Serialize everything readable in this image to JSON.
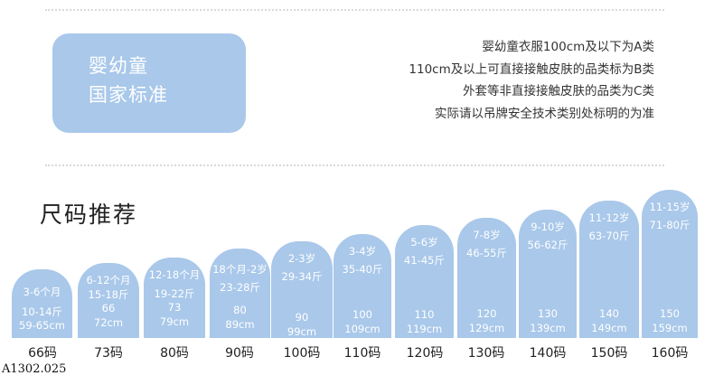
{
  "badge": {
    "line1": "婴幼童",
    "line2": "国家标准"
  },
  "rules": [
    "婴幼童衣服100cm及以下为A类",
    "110cm及以上可直接接触皮肤的品类标为B类",
    "外套等非直接接触皮肤的品类为C类",
    "实际请以吊牌安全技术类别处标明的为准"
  ],
  "section_title": "尺码推荐",
  "sizes": [
    {
      "age": "3-6个月",
      "length": "10-14斤",
      "weight": "59-65cm",
      "num": "",
      "cm": "",
      "label": "66码"
    },
    {
      "age": "6-12个月",
      "length": "15-18斤",
      "weight": "",
      "num": "66",
      "cm": "72cm",
      "label": "73码"
    },
    {
      "age": "12-18个月",
      "length": "19-22斤",
      "weight": "",
      "num": "73",
      "cm": "79cm",
      "label": "80码"
    },
    {
      "age": "18个月-2岁",
      "length": "23-28斤",
      "weight": "",
      "num": "80",
      "cm": "89cm",
      "label": "90码"
    },
    {
      "age": "2-3岁",
      "length": "29-34斤",
      "weight": "",
      "num": "90",
      "cm": "99cm",
      "label": "100码"
    },
    {
      "age": "3-4岁",
      "length": "35-40斤",
      "weight": "",
      "num": "100",
      "cm": "109cm",
      "label": "110码"
    },
    {
      "age": "5-6岁",
      "length": "41-45斤",
      "weight": "",
      "num": "110",
      "cm": "119cm",
      "label": "120码"
    },
    {
      "age": "7-8岁",
      "length": "46-55斤",
      "weight": "",
      "num": "120",
      "cm": "129cm",
      "label": "130码"
    },
    {
      "age": "9-10岁",
      "length": "56-62斤",
      "weight": "",
      "num": "130",
      "cm": "139cm",
      "label": "140码"
    },
    {
      "age": "11-12岁",
      "length": "63-70斤",
      "weight": "",
      "num": "140",
      "cm": "149cm",
      "label": "150码"
    },
    {
      "age": "11-15岁",
      "length": "71-80斤",
      "weight": "",
      "num": "150",
      "cm": "159cm",
      "label": "160码"
    }
  ],
  "product_code": "A1302.025",
  "colors": {
    "card_blue": "#a9c8ea",
    "text_dark": "#222222",
    "text_white": "#ffffff"
  }
}
